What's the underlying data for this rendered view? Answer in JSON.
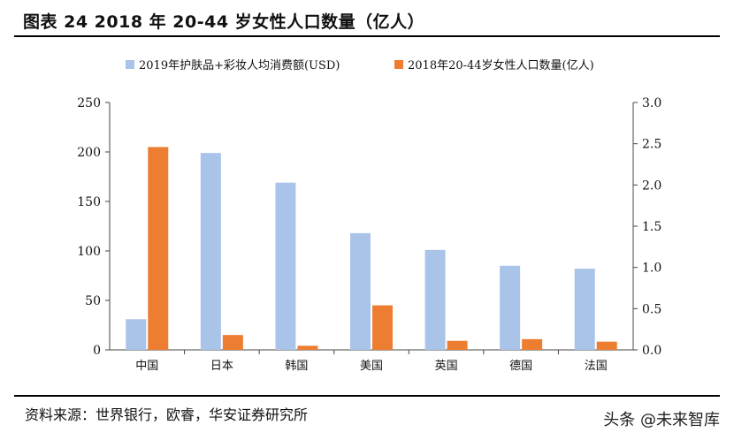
{
  "header": {
    "title": "图表 24 2018 年 20-44 岁女性人口数量（亿人）"
  },
  "footer": {
    "source": "资料来源：世界银行，欧睿，华安证券研究所",
    "watermark": "头条 @未来智库"
  },
  "chart_data": {
    "type": "bar",
    "categories": [
      "中国",
      "日本",
      "韩国",
      "美国",
      "英国",
      "德国",
      "法国"
    ],
    "series": [
      {
        "name": "2019年护肤品+彩妆人均消费额(USD)",
        "axis": "left",
        "color": "#a9c4e8",
        "values": [
          31,
          199,
          169,
          118,
          101,
          85,
          82
        ]
      },
      {
        "name": "2018年20-44岁女性人口数量(亿人)",
        "axis": "right",
        "color": "#ed7d31",
        "values": [
          2.46,
          0.18,
          0.05,
          0.54,
          0.11,
          0.13,
          0.1
        ]
      }
    ],
    "ylim_left": [
      0,
      250
    ],
    "yticks_left": [
      "0",
      "50",
      "100",
      "150",
      "200",
      "250"
    ],
    "ylim_right": [
      0,
      3.0
    ],
    "yticks_right": [
      "0.0",
      "0.5",
      "1.0",
      "1.5",
      "2.0",
      "2.5",
      "3.0"
    ],
    "grid": false,
    "legend_position": "top"
  }
}
